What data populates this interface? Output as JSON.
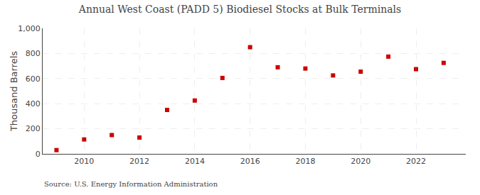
{
  "chart_data": {
    "type": "scatter",
    "title": "Annual West Coast (PADD 5) Biodiesel Stocks at Bulk Terminals",
    "ylabel": "Thousand Barrels",
    "annotations": [
      "Source: U.S. Energy Information Administration"
    ],
    "x": [
      2009,
      2010,
      2011,
      2012,
      2013,
      2014,
      2015,
      2016,
      2017,
      2018,
      2019,
      2020,
      2021,
      2022,
      2023
    ],
    "values": [
      30,
      115,
      150,
      130,
      350,
      425,
      605,
      850,
      690,
      680,
      625,
      655,
      775,
      675,
      725
    ],
    "color": "#cc0000",
    "marker": "square",
    "xlim": [
      2008.5,
      2023.8
    ],
    "xticks": [
      2010,
      2012,
      2014,
      2016,
      2018,
      2020,
      2022
    ],
    "ylim": [
      0,
      1000
    ],
    "yticks": [
      0,
      200,
      400,
      600,
      800,
      {
        "value": 1000,
        "label": "1,000"
      }
    ],
    "grid": true
  }
}
